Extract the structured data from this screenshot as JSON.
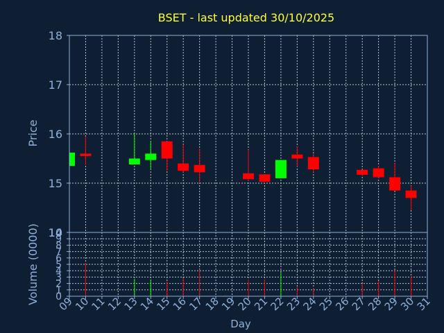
{
  "chart_data": {
    "type": "candlestick",
    "title": "BSET - last updated 30/10/2025",
    "xlabel": "Day",
    "ylabel_price": "Price",
    "ylabel_volume": "Volume (0000)",
    "x_ticks": [
      "09",
      "10",
      "11",
      "12",
      "13",
      "14",
      "15",
      "16",
      "17",
      "18",
      "19",
      "20",
      "21",
      "22",
      "23",
      "24",
      "25",
      "26",
      "27",
      "28",
      "29",
      "30",
      "31"
    ],
    "price_ticks": [
      14,
      15,
      16,
      17,
      18
    ],
    "price_ylim": [
      14,
      18
    ],
    "divider_label": "10",
    "volume_ticks": [
      0,
      1,
      2,
      3,
      4,
      5,
      6,
      7,
      8,
      9
    ],
    "volume_ylim": [
      0,
      10
    ],
    "grid": true,
    "colors": {
      "up": "#00ff00",
      "down": "#ff0000",
      "title": "#ffff33",
      "axis": "#8fb0d8",
      "grid": "#b8c4d0"
    },
    "candles": [
      {
        "day": 9,
        "open": 15.35,
        "close": 15.62,
        "high": 15.62,
        "low": 15.35,
        "volume": 0
      },
      {
        "day": 10,
        "open": 15.6,
        "close": 15.55,
        "high": 15.95,
        "low": 15.37,
        "volume": 5.2
      },
      {
        "day": 13,
        "open": 15.38,
        "close": 15.5,
        "high": 16.0,
        "low": 15.38,
        "volume": 2.7
      },
      {
        "day": 14,
        "open": 15.47,
        "close": 15.6,
        "high": 15.85,
        "low": 15.28,
        "volume": 2.5
      },
      {
        "day": 15,
        "open": 15.85,
        "close": 15.5,
        "high": 15.85,
        "low": 15.25,
        "volume": 2.3
      },
      {
        "day": 16,
        "open": 15.4,
        "close": 15.25,
        "high": 15.78,
        "low": 15.22,
        "volume": 2.8
      },
      {
        "day": 17,
        "open": 15.37,
        "close": 15.22,
        "high": 15.7,
        "low": 15.0,
        "volume": 4.2
      },
      {
        "day": 20,
        "open": 15.2,
        "close": 15.08,
        "high": 15.68,
        "low": 15.05,
        "volume": 2.6
      },
      {
        "day": 21,
        "open": 15.18,
        "close": 15.03,
        "high": 15.18,
        "low": 15.0,
        "volume": 2.6
      },
      {
        "day": 22,
        "open": 15.1,
        "close": 15.47,
        "high": 15.47,
        "low": 15.1,
        "volume": 3.7
      },
      {
        "day": 23,
        "open": 15.58,
        "close": 15.5,
        "high": 15.75,
        "low": 15.33,
        "volume": 1.5
      },
      {
        "day": 24,
        "open": 15.53,
        "close": 15.28,
        "high": 15.6,
        "low": 15.22,
        "volume": 1.3
      },
      {
        "day": 27,
        "open": 15.27,
        "close": 15.17,
        "high": 15.27,
        "low": 15.15,
        "volume": 2.0
      },
      {
        "day": 28,
        "open": 15.3,
        "close": 15.12,
        "high": 15.35,
        "low": 15.1,
        "volume": 2.4
      },
      {
        "day": 29,
        "open": 15.12,
        "close": 14.85,
        "high": 15.4,
        "low": 14.85,
        "volume": 4.0
      },
      {
        "day": 30,
        "open": 14.85,
        "close": 14.7,
        "high": 14.95,
        "low": 14.45,
        "volume": 3.1
      }
    ]
  }
}
